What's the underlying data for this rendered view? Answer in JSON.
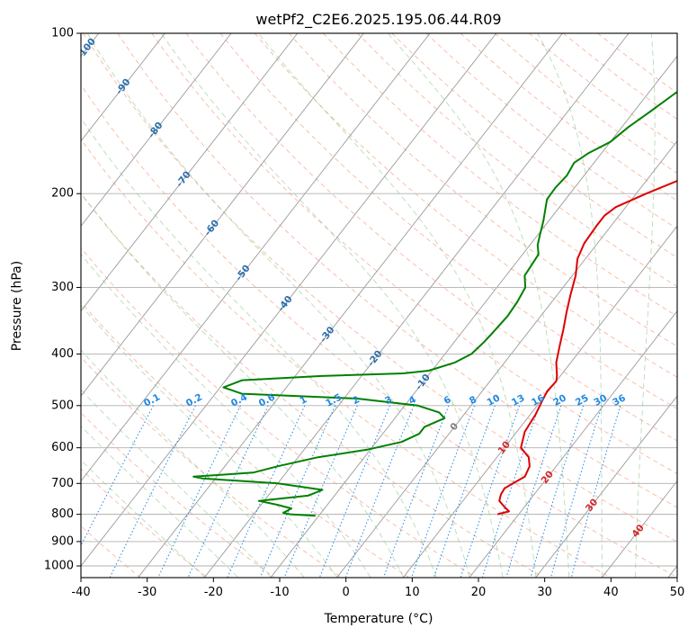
{
  "chart_data": {
    "type": "line",
    "title": "wetPf2_C2E6.2025.195.06.44.R09",
    "xlabel": "Temperature (°C)",
    "ylabel": "Pressure (hPa)",
    "xlim": [
      -40,
      50
    ],
    "ylim": [
      1050,
      100
    ],
    "y_scale": "log",
    "grid": true,
    "x_ticks": [
      "-40",
      "-30",
      "-20",
      "-10",
      "0",
      "10",
      "20",
      "30",
      "40",
      "50"
    ],
    "y_ticks": [
      "100",
      "200",
      "300",
      "400",
      "500",
      "600",
      "700",
      "800",
      "900",
      "1000"
    ],
    "series": [
      {
        "color": "#dd0000",
        "points": [
          [
            16.8,
            800
          ],
          [
            18.2,
            790
          ],
          [
            17.0,
            775
          ],
          [
            15.5,
            755
          ],
          [
            15.0,
            735
          ],
          [
            14.8,
            715
          ],
          [
            15.5,
            700
          ],
          [
            16.5,
            680
          ],
          [
            16.0,
            650
          ],
          [
            14.8,
            625
          ],
          [
            12.5,
            600
          ],
          [
            11.2,
            560
          ],
          [
            10.8,
            520
          ],
          [
            10.2,
            490
          ],
          [
            9.8,
            470
          ],
          [
            10.0,
            450
          ],
          [
            9.5,
            440
          ],
          [
            7.8,
            415
          ],
          [
            6.3,
            385
          ],
          [
            5.0,
            360
          ],
          [
            3.5,
            335
          ],
          [
            2.0,
            310
          ],
          [
            0.5,
            285
          ],
          [
            -1.2,
            265
          ],
          [
            -2.0,
            248
          ],
          [
            -2.2,
            230
          ],
          [
            -2.2,
            220
          ],
          [
            -1.5,
            212
          ],
          [
            1.5,
            200
          ],
          [
            6.0,
            185
          ],
          [
            9.5,
            170
          ],
          [
            10.5,
            160
          ],
          [
            10.3,
            150
          ],
          [
            10.5,
            140
          ],
          [
            11.5,
            132
          ],
          [
            13.0,
            123
          ],
          [
            14.8,
            113
          ],
          [
            16.3,
            105
          ],
          [
            16.8,
            100
          ]
        ]
      },
      {
        "color": "#008000",
        "points": [
          [
            -10.5,
            805
          ],
          [
            -14.5,
            800
          ],
          [
            -15.7,
            795
          ],
          [
            -15.0,
            780
          ],
          [
            -17.5,
            768
          ],
          [
            -20.8,
            755
          ],
          [
            -14.0,
            738
          ],
          [
            -12.5,
            720
          ],
          [
            -20.0,
            700
          ],
          [
            -32.0,
            685
          ],
          [
            -33.5,
            680
          ],
          [
            -25.0,
            668
          ],
          [
            -22.0,
            650
          ],
          [
            -17.0,
            625
          ],
          [
            -10.5,
            605
          ],
          [
            -6.2,
            585
          ],
          [
            -4.5,
            565
          ],
          [
            -4.5,
            548
          ],
          [
            -2.5,
            528
          ],
          [
            -4.0,
            515
          ],
          [
            -8.0,
            500
          ],
          [
            -18.0,
            485
          ],
          [
            -36.0,
            475
          ],
          [
            -39.5,
            462
          ],
          [
            -37.5,
            448
          ],
          [
            -26.0,
            440
          ],
          [
            -14.0,
            435
          ],
          [
            -10.5,
            430
          ],
          [
            -7.5,
            415
          ],
          [
            -6.0,
            400
          ],
          [
            -5.5,
            380
          ],
          [
            -5.3,
            365
          ],
          [
            -5.0,
            340
          ],
          [
            -5.2,
            320
          ],
          [
            -5.7,
            300
          ],
          [
            -7.2,
            285
          ],
          [
            -7.6,
            260
          ],
          [
            -8.8,
            250
          ],
          [
            -9.6,
            240
          ],
          [
            -10.8,
            225
          ],
          [
            -12.8,
            205
          ],
          [
            -12.9,
            195
          ],
          [
            -12.6,
            185
          ],
          [
            -13.0,
            175
          ],
          [
            -12.0,
            168
          ],
          [
            -10.0,
            160
          ],
          [
            -9.0,
            150
          ],
          [
            -7.5,
            140
          ],
          [
            -6.0,
            130
          ],
          [
            -5.0,
            125
          ],
          [
            -4.0,
            115
          ],
          [
            -2.5,
            108
          ],
          [
            -0.8,
            100
          ]
        ]
      }
    ],
    "isotherm_labels": [
      {
        "text": "-100",
        "t": -100,
        "p": 107
      },
      {
        "text": "-90",
        "t": -90,
        "p": 126
      },
      {
        "text": "-80",
        "t": -80,
        "p": 152
      },
      {
        "text": "-70",
        "t": -70,
        "p": 188
      },
      {
        "text": "-60",
        "t": -60,
        "p": 232
      },
      {
        "text": "-50",
        "t": -50,
        "p": 282
      },
      {
        "text": "-40",
        "t": -40,
        "p": 322
      },
      {
        "text": "-30",
        "t": -30,
        "p": 368
      },
      {
        "text": "-20",
        "t": -20,
        "p": 408
      },
      {
        "text": "-10",
        "t": -10,
        "p": 452
      },
      {
        "text": "0",
        "t": 0,
        "p": 548
      },
      {
        "text": "10",
        "t": 10,
        "p": 600
      },
      {
        "text": "20",
        "t": 20,
        "p": 682
      },
      {
        "text": "30",
        "t": 30,
        "p": 770
      },
      {
        "text": "40",
        "t": 40,
        "p": 860
      }
    ],
    "mixing_ratio_labels": [
      "0.1",
      "0.2",
      "0.4",
      "0.6",
      "1",
      "1.5",
      "2",
      "3",
      "4",
      "6",
      "8",
      "10",
      "13",
      "16",
      "20",
      "25",
      "30",
      "36"
    ],
    "colors": {
      "temperature": "#dd0000",
      "dewpoint": "#008000",
      "isotherm_label": "#2b6fae",
      "mixing_ratio": "#1e88e5",
      "warm_isotherm_label": "#d62728",
      "zero_isotherm_label": "#808080"
    }
  }
}
